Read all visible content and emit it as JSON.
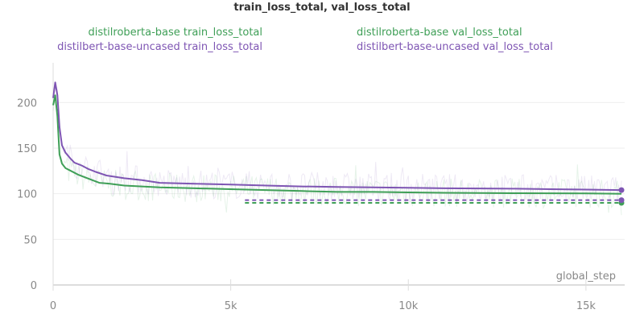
{
  "chart_data": {
    "type": "line",
    "title": "train_loss_total, val_loss_total",
    "xlabel": "global_step",
    "ylabel": "",
    "xlim": [
      0,
      16000
    ],
    "ylim": [
      0,
      240
    ],
    "x_ticks": [
      0,
      5000,
      10000,
      15000
    ],
    "x_tick_labels": [
      "0",
      "5k",
      "10k",
      "15k"
    ],
    "y_ticks": [
      0,
      50,
      100,
      150,
      200
    ],
    "y_tick_labels": [
      "0",
      "50",
      "100",
      "150",
      "200"
    ],
    "grid": true,
    "legend_position": "top",
    "series": [
      {
        "name": "distilroberta-base train_loss_total",
        "color": "#3f9f57",
        "dash": "solid",
        "marker_last": false,
        "x": [
          0,
          60,
          120,
          180,
          250,
          350,
          500,
          700,
          900,
          1100,
          1300,
          1600,
          2000,
          2500,
          3000,
          4000,
          5000,
          6000,
          7000,
          8000,
          9000,
          10000,
          11000,
          12000,
          13000,
          14000,
          15000,
          16000
        ],
        "y": [
          197,
          208,
          185,
          143,
          133,
          128,
          125,
          121,
          118,
          115,
          112,
          111,
          109,
          108,
          107,
          106,
          105,
          104,
          103,
          102,
          102,
          101.5,
          101,
          100.8,
          100.6,
          100.5,
          100.3,
          100
        ]
      },
      {
        "name": "distilbert-base-uncased train_loss_total",
        "color": "#7e55b3",
        "dash": "solid",
        "marker_last": true,
        "x": [
          0,
          60,
          120,
          180,
          250,
          350,
          500,
          600,
          800,
          1000,
          1200,
          1500,
          2000,
          2500,
          3000,
          4000,
          5000,
          6000,
          7000,
          8000,
          9000,
          10000,
          11000,
          12000,
          13000,
          14000,
          15000,
          16000
        ],
        "y": [
          205,
          222,
          208,
          173,
          153,
          145,
          138,
          134,
          131,
          127,
          124,
          120,
          117,
          115,
          112,
          111,
          110,
          109,
          108,
          107.5,
          107,
          106.5,
          106,
          105.8,
          105.5,
          105,
          104.6,
          104
        ]
      },
      {
        "name": "distilroberta-base val_loss_total",
        "color": "#3f9f57",
        "dash": "dashed",
        "marker_last": true,
        "x": [
          5400,
          16000
        ],
        "y": [
          90,
          90
        ]
      },
      {
        "name": "distilbert-base-uncased val_loss_total",
        "color": "#7e55b3",
        "dash": "dashed",
        "marker_last": true,
        "x": [
          5400,
          16000
        ],
        "y": [
          93,
          93
        ]
      }
    ]
  }
}
